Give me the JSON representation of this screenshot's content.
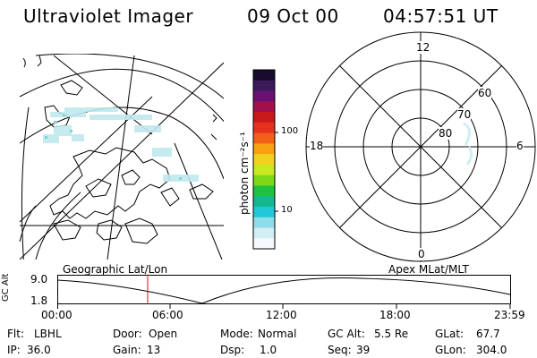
{
  "header": {
    "title": "Ultraviolet Imager",
    "date": "09 Oct 00",
    "time": "04:57:51 UT"
  },
  "colorbar": {
    "label": "photon cm⁻²s⁻¹",
    "ticks": [
      "100",
      "10"
    ],
    "colors": [
      "#1a0a2e",
      "#3a1a5a",
      "#6a1070",
      "#a0104a",
      "#c81a1a",
      "#e83020",
      "#f06018",
      "#f7a010",
      "#f2d020",
      "#c8e820",
      "#7cd818",
      "#20c040",
      "#14b890",
      "#20c8d8",
      "#8edde8",
      "#d0eef4",
      "#f4fafc"
    ]
  },
  "left_panel": {
    "caption": "Geographic Lat/Lon"
  },
  "right_panel": {
    "caption": "Apex MLat/MLT",
    "mlt_labels": {
      "top": "12",
      "left": "18",
      "right": "6",
      "bottom": "0"
    },
    "lat_labels": [
      "60",
      "70",
      "80"
    ]
  },
  "altitude_plot": {
    "ylabel": "GC Alt",
    "yticks": [
      "9.0",
      "1.8"
    ],
    "xticks": [
      "00:00",
      "06:00",
      "12:00",
      "18:00",
      "23:59"
    ],
    "marker_time": "04:57:51"
  },
  "info": {
    "flt_label": "Flt:",
    "flt_value": "LBHL",
    "door_label": "Door:",
    "door_value": "Open",
    "mode_label": "Mode:",
    "mode_value": "Normal",
    "gcalt_label": "GC Alt:",
    "gcalt_value": "5.5 Re",
    "glat_label": "GLat:",
    "glat_value": "67.7",
    "ip_label": "IP:",
    "ip_value": "36.0",
    "gain_label": "Gain:",
    "gain_value": "13",
    "dsp_label": "Dsp:",
    "dsp_value": "1.0",
    "seq_label": "Seq:",
    "seq_value": "39",
    "glon_label": "GLon:",
    "glon_value": "304.0"
  }
}
